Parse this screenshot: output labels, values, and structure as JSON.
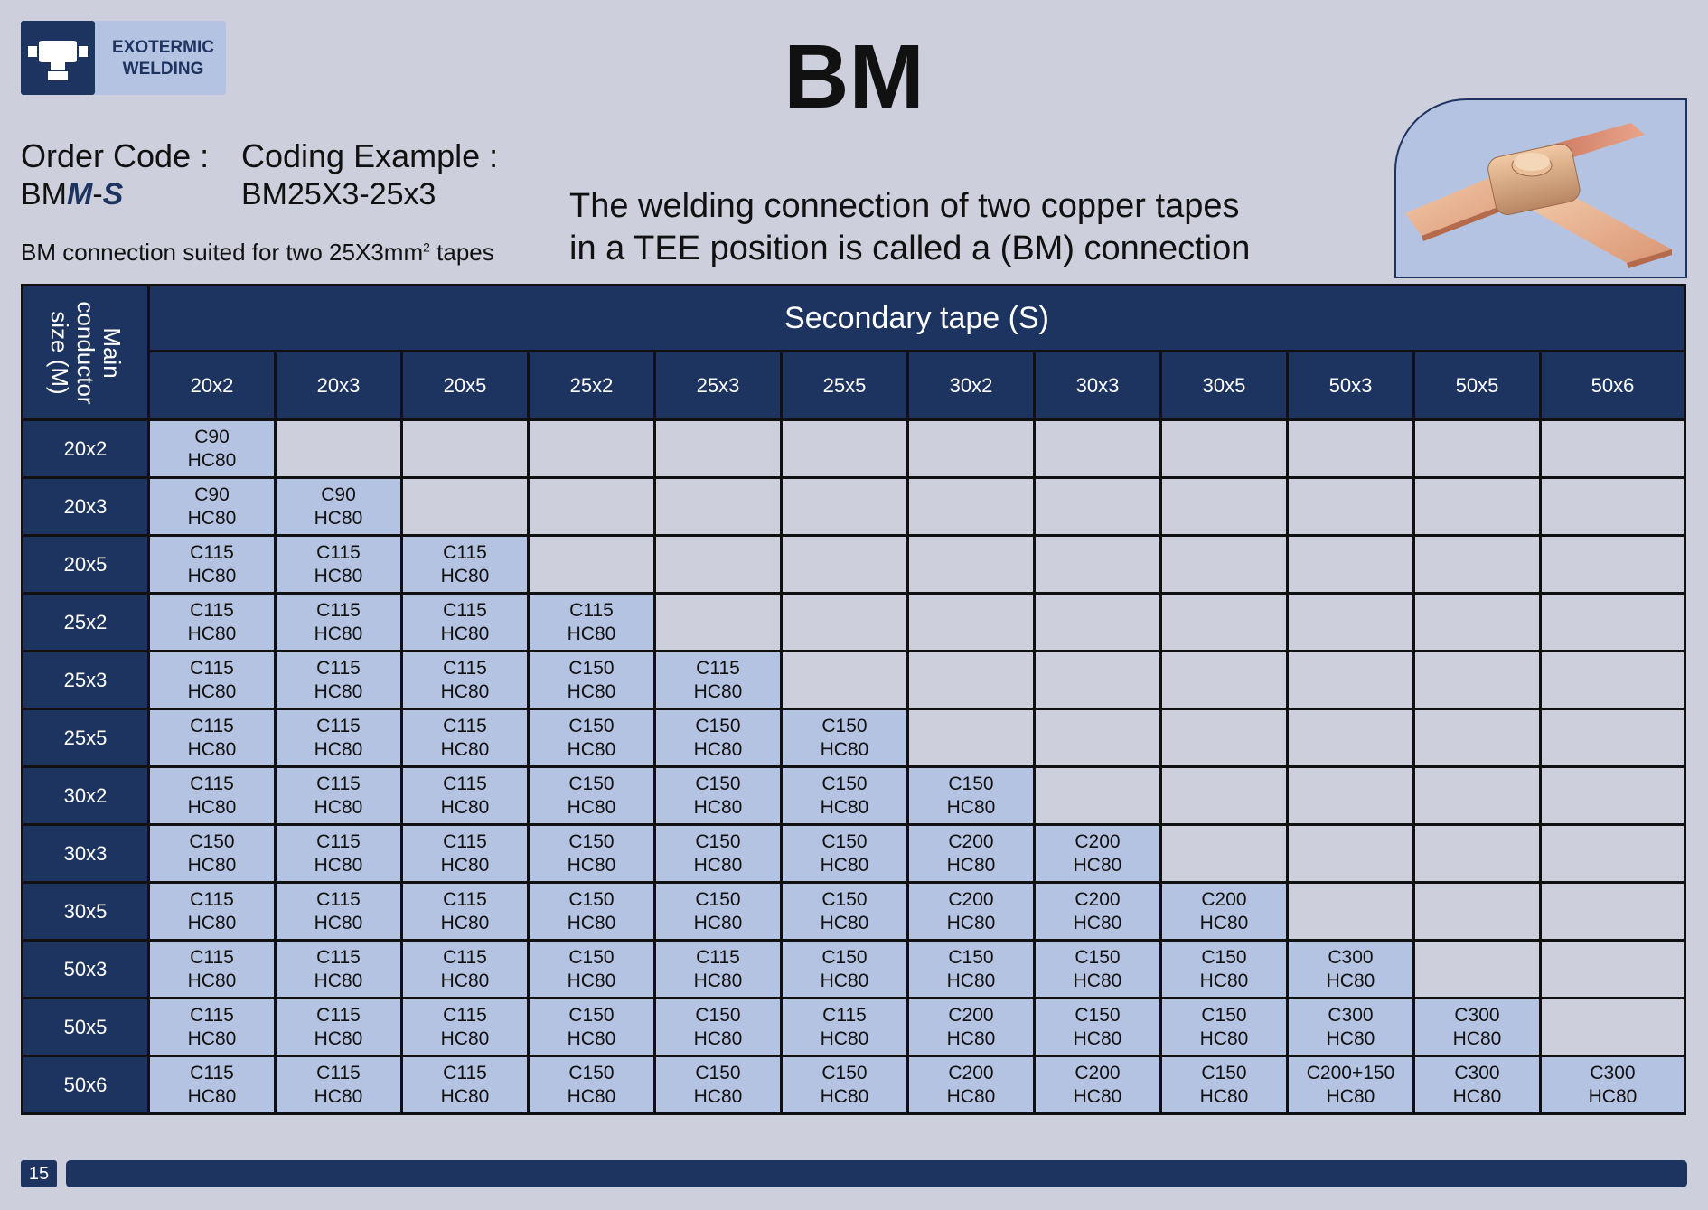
{
  "logo": {
    "line1": "EXOTERMIC",
    "line2": "WELDING",
    "icon": "tee-connector-icon"
  },
  "title": "BM",
  "order": {
    "label": "Order Code :",
    "code_prefix": "BM",
    "code_main": "M",
    "code_dash": "-",
    "code_sec": "S"
  },
  "coding": {
    "label": "Coding Example :",
    "example": "BM25X3-25x3"
  },
  "suited": {
    "prefix": "BM connection suited for two 25X3mm",
    "sup": "2",
    "suffix": " tapes"
  },
  "description": {
    "line1": "The welding connection of two copper tapes",
    "line2": "in a TEE position is called a (BM) connection"
  },
  "table": {
    "corner_label": [
      "Main",
      "conductor",
      "size (M)"
    ],
    "header": "Secondary tape (S)",
    "columns": [
      "20x2",
      "20x3",
      "20x5",
      "25x2",
      "25x3",
      "25x5",
      "30x2",
      "30x3",
      "30x5",
      "50x3",
      "50x5",
      "50x6"
    ],
    "rows": [
      {
        "label": "20x2",
        "cells": [
          [
            "C90",
            "HC80"
          ]
        ]
      },
      {
        "label": "20x3",
        "cells": [
          [
            "C90",
            "HC80"
          ],
          [
            "C90",
            "HC80"
          ]
        ]
      },
      {
        "label": "20x5",
        "cells": [
          [
            "C115",
            "HC80"
          ],
          [
            "C115",
            "HC80"
          ],
          [
            "C115",
            "HC80"
          ]
        ]
      },
      {
        "label": "25x2",
        "cells": [
          [
            "C115",
            "HC80"
          ],
          [
            "C115",
            "HC80"
          ],
          [
            "C115",
            "HC80"
          ],
          [
            "C115",
            "HC80"
          ]
        ]
      },
      {
        "label": "25x3",
        "cells": [
          [
            "C115",
            "HC80"
          ],
          [
            "C115",
            "HC80"
          ],
          [
            "C115",
            "HC80"
          ],
          [
            "C150",
            "HC80"
          ],
          [
            "C115",
            "HC80"
          ]
        ]
      },
      {
        "label": "25x5",
        "cells": [
          [
            "C115",
            "HC80"
          ],
          [
            "C115",
            "HC80"
          ],
          [
            "C115",
            "HC80"
          ],
          [
            "C150",
            "HC80"
          ],
          [
            "C150",
            "HC80"
          ],
          [
            "C150",
            "HC80"
          ]
        ]
      },
      {
        "label": "30x2",
        "cells": [
          [
            "C115",
            "HC80"
          ],
          [
            "C115",
            "HC80"
          ],
          [
            "C115",
            "HC80"
          ],
          [
            "C150",
            "HC80"
          ],
          [
            "C150",
            "HC80"
          ],
          [
            "C150",
            "HC80"
          ],
          [
            "C150",
            "HC80"
          ]
        ]
      },
      {
        "label": "30x3",
        "cells": [
          [
            "C150",
            "HC80"
          ],
          [
            "C115",
            "HC80"
          ],
          [
            "C115",
            "HC80"
          ],
          [
            "C150",
            "HC80"
          ],
          [
            "C150",
            "HC80"
          ],
          [
            "C150",
            "HC80"
          ],
          [
            "C200",
            "HC80"
          ],
          [
            "C200",
            "HC80"
          ]
        ]
      },
      {
        "label": "30x5",
        "cells": [
          [
            "C115",
            "HC80"
          ],
          [
            "C115",
            "HC80"
          ],
          [
            "C115",
            "HC80"
          ],
          [
            "C150",
            "HC80"
          ],
          [
            "C150",
            "HC80"
          ],
          [
            "C150",
            "HC80"
          ],
          [
            "C200",
            "HC80"
          ],
          [
            "C200",
            "HC80"
          ],
          [
            "C200",
            "HC80"
          ]
        ]
      },
      {
        "label": "50x3",
        "cells": [
          [
            "C115",
            "HC80"
          ],
          [
            "C115",
            "HC80"
          ],
          [
            "C115",
            "HC80"
          ],
          [
            "C150",
            "HC80"
          ],
          [
            "C115",
            "HC80"
          ],
          [
            "C150",
            "HC80"
          ],
          [
            "C150",
            "HC80"
          ],
          [
            "C150",
            "HC80"
          ],
          [
            "C150",
            "HC80"
          ],
          [
            "C300",
            "HC80"
          ]
        ]
      },
      {
        "label": "50x5",
        "cells": [
          [
            "C115",
            "HC80"
          ],
          [
            "C115",
            "HC80"
          ],
          [
            "C115",
            "HC80"
          ],
          [
            "C150",
            "HC80"
          ],
          [
            "C150",
            "HC80"
          ],
          [
            "C115",
            "HC80"
          ],
          [
            "C200",
            "HC80"
          ],
          [
            "C150",
            "HC80"
          ],
          [
            "C150",
            "HC80"
          ],
          [
            "C300",
            "HC80"
          ],
          [
            "C300",
            "HC80"
          ]
        ]
      },
      {
        "label": "50x6",
        "cells": [
          [
            "C115",
            "HC80"
          ],
          [
            "C115",
            "HC80"
          ],
          [
            "C115",
            "HC80"
          ],
          [
            "C150",
            "HC80"
          ],
          [
            "C150",
            "HC80"
          ],
          [
            "C150",
            "HC80"
          ],
          [
            "C200",
            "HC80"
          ],
          [
            "C200",
            "HC80"
          ],
          [
            "C150",
            "HC80"
          ],
          [
            "C200+150",
            "HC80"
          ],
          [
            "C300",
            "HC80"
          ],
          [
            "C300",
            "HC80"
          ]
        ]
      }
    ]
  },
  "footer": {
    "page": "15"
  },
  "colors": {
    "navy": "#1d3461",
    "light_blue": "#b5c3e2",
    "background": "#cdd0dc"
  }
}
